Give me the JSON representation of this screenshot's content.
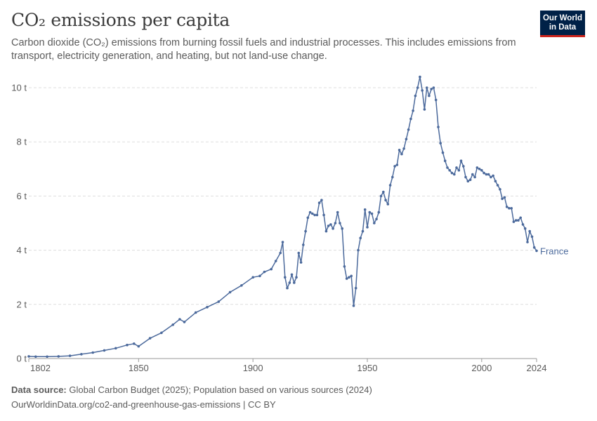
{
  "header": {
    "title": "CO₂ emissions per capita",
    "subtitle": "Carbon dioxide (CO₂) emissions from burning fossil fuels and industrial processes. This includes emissions from transport, electricity generation, and heating, but not land-use change.",
    "logo_line1": "Our World",
    "logo_line2": "in Data"
  },
  "footer": {
    "source_label": "Data source:",
    "source_text": " Global Carbon Budget (2025); Population based on various sources (2024)",
    "url_text": "OurWorldinData.org/co2-and-greenhouse-gas-emissions | CC BY"
  },
  "colors": {
    "series": "#4c6a9c",
    "grid": "#dddddd",
    "axis": "#5b5b5b",
    "logo_bg": "#002147",
    "logo_accent": "#ce261e"
  },
  "chart_data": {
    "type": "line",
    "title": "CO₂ emissions per capita",
    "xlim": [
      1802,
      2024
    ],
    "ylim": [
      0,
      10.4
    ],
    "x_ticks": [
      1802,
      1850,
      1900,
      1950,
      2000,
      2024
    ],
    "y_ticks": [
      0,
      2,
      4,
      6,
      8,
      10
    ],
    "y_tick_labels": [
      "0 t",
      "2 t",
      "4 t",
      "6 t",
      "8 t",
      "10 t"
    ],
    "grid": "horizontal dashed",
    "series": [
      {
        "name": "France",
        "x": [
          1802,
          1805,
          1810,
          1815,
          1820,
          1825,
          1830,
          1835,
          1840,
          1845,
          1848,
          1850,
          1855,
          1860,
          1865,
          1868,
          1870,
          1875,
          1880,
          1885,
          1890,
          1895,
          1900,
          1903,
          1905,
          1908,
          1910,
          1912,
          1913,
          1914,
          1915,
          1916,
          1917,
          1918,
          1919,
          1920,
          1921,
          1922,
          1923,
          1924,
          1925,
          1926,
          1927,
          1928,
          1929,
          1930,
          1931,
          1932,
          1933,
          1934,
          1935,
          1936,
          1937,
          1938,
          1939,
          1940,
          1941,
          1942,
          1943,
          1944,
          1945,
          1946,
          1947,
          1948,
          1949,
          1950,
          1951,
          1952,
          1953,
          1954,
          1955,
          1956,
          1957,
          1958,
          1959,
          1960,
          1961,
          1962,
          1963,
          1964,
          1965,
          1966,
          1967,
          1968,
          1969,
          1970,
          1971,
          1972,
          1973,
          1974,
          1975,
          1976,
          1977,
          1978,
          1979,
          1980,
          1981,
          1982,
          1983,
          1984,
          1985,
          1986,
          1987,
          1988,
          1989,
          1990,
          1991,
          1992,
          1993,
          1994,
          1995,
          1996,
          1997,
          1998,
          1999,
          2000,
          2001,
          2002,
          2003,
          2004,
          2005,
          2006,
          2007,
          2008,
          2009,
          2010,
          2011,
          2012,
          2013,
          2014,
          2015,
          2016,
          2017,
          2018,
          2019,
          2020,
          2021,
          2022,
          2023,
          2024
        ],
        "values": [
          0.08,
          0.07,
          0.07,
          0.08,
          0.1,
          0.16,
          0.22,
          0.3,
          0.38,
          0.5,
          0.55,
          0.45,
          0.75,
          0.95,
          1.25,
          1.45,
          1.35,
          1.7,
          1.9,
          2.1,
          2.45,
          2.7,
          3.0,
          3.05,
          3.2,
          3.3,
          3.6,
          3.9,
          4.3,
          3.0,
          2.6,
          2.8,
          3.1,
          2.8,
          3.0,
          3.9,
          3.55,
          4.2,
          4.7,
          5.2,
          5.4,
          5.35,
          5.3,
          5.3,
          5.75,
          5.85,
          5.3,
          4.7,
          4.9,
          4.95,
          4.8,
          5.0,
          5.4,
          5.0,
          4.8,
          3.4,
          2.95,
          3.0,
          3.05,
          1.95,
          2.6,
          4.0,
          4.45,
          4.7,
          5.5,
          4.85,
          5.4,
          5.35,
          5.0,
          5.15,
          5.4,
          6.0,
          6.15,
          5.85,
          5.7,
          6.4,
          6.7,
          7.1,
          7.15,
          7.7,
          7.55,
          7.75,
          8.1,
          8.45,
          8.85,
          9.15,
          9.7,
          10.0,
          10.4,
          9.9,
          9.2,
          10.0,
          9.7,
          9.95,
          10.0,
          9.55,
          8.55,
          7.95,
          7.6,
          7.3,
          7.05,
          6.95,
          6.85,
          6.8,
          7.05,
          6.95,
          7.3,
          7.1,
          6.7,
          6.55,
          6.6,
          6.8,
          6.7,
          7.05,
          7.0,
          6.95,
          6.85,
          6.8,
          6.8,
          6.7,
          6.75,
          6.55,
          6.4,
          6.25,
          5.9,
          5.95,
          5.6,
          5.55,
          5.55,
          5.05,
          5.1,
          5.1,
          5.2,
          4.95,
          4.8,
          4.3,
          4.7,
          4.5,
          4.1,
          3.98
        ],
        "label": "France"
      }
    ]
  }
}
